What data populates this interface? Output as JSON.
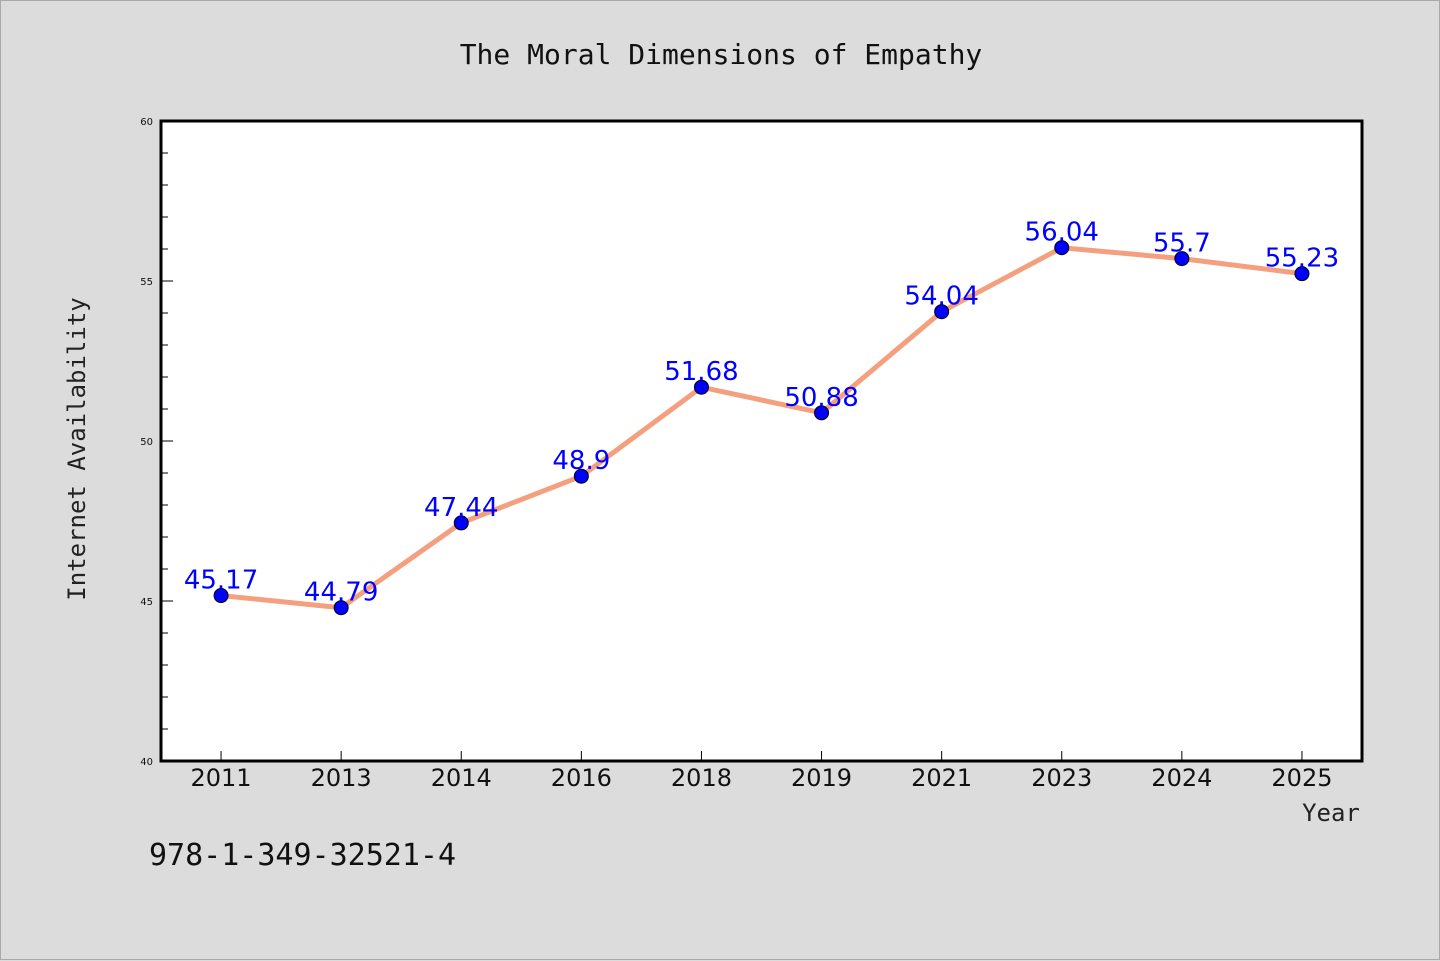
{
  "chart_data": {
    "type": "line",
    "title": "The Moral Dimensions of Empathy",
    "xlabel": "Year",
    "ylabel": "Internet Availability",
    "categories": [
      "2011",
      "2013",
      "2014",
      "2016",
      "2018",
      "2019",
      "2021",
      "2023",
      "2024",
      "2025"
    ],
    "series": [
      {
        "values": [
          45.17,
          44.79,
          47.44,
          48.9,
          51.68,
          50.88,
          54.04,
          56.04,
          55.7,
          55.23
        ],
        "labels": [
          "45.17",
          "44.79",
          "47.44",
          "48.9",
          "51.68",
          "50.88",
          "54.04",
          "56.04",
          "55.7",
          "55.23"
        ],
        "line_color": "#f4a07e",
        "marker_color": "#0000ff"
      }
    ],
    "ylim": [
      40,
      60
    ],
    "yticks": [
      "40",
      "45",
      "50",
      "55",
      "60"
    ],
    "grid": false,
    "legend": "none"
  },
  "footer": {
    "isbn": "978-1-349-32521-4"
  },
  "colors": {
    "background": "#dcdcdc",
    "plot_background": "#ffffff",
    "data_label": "#0000ff"
  }
}
